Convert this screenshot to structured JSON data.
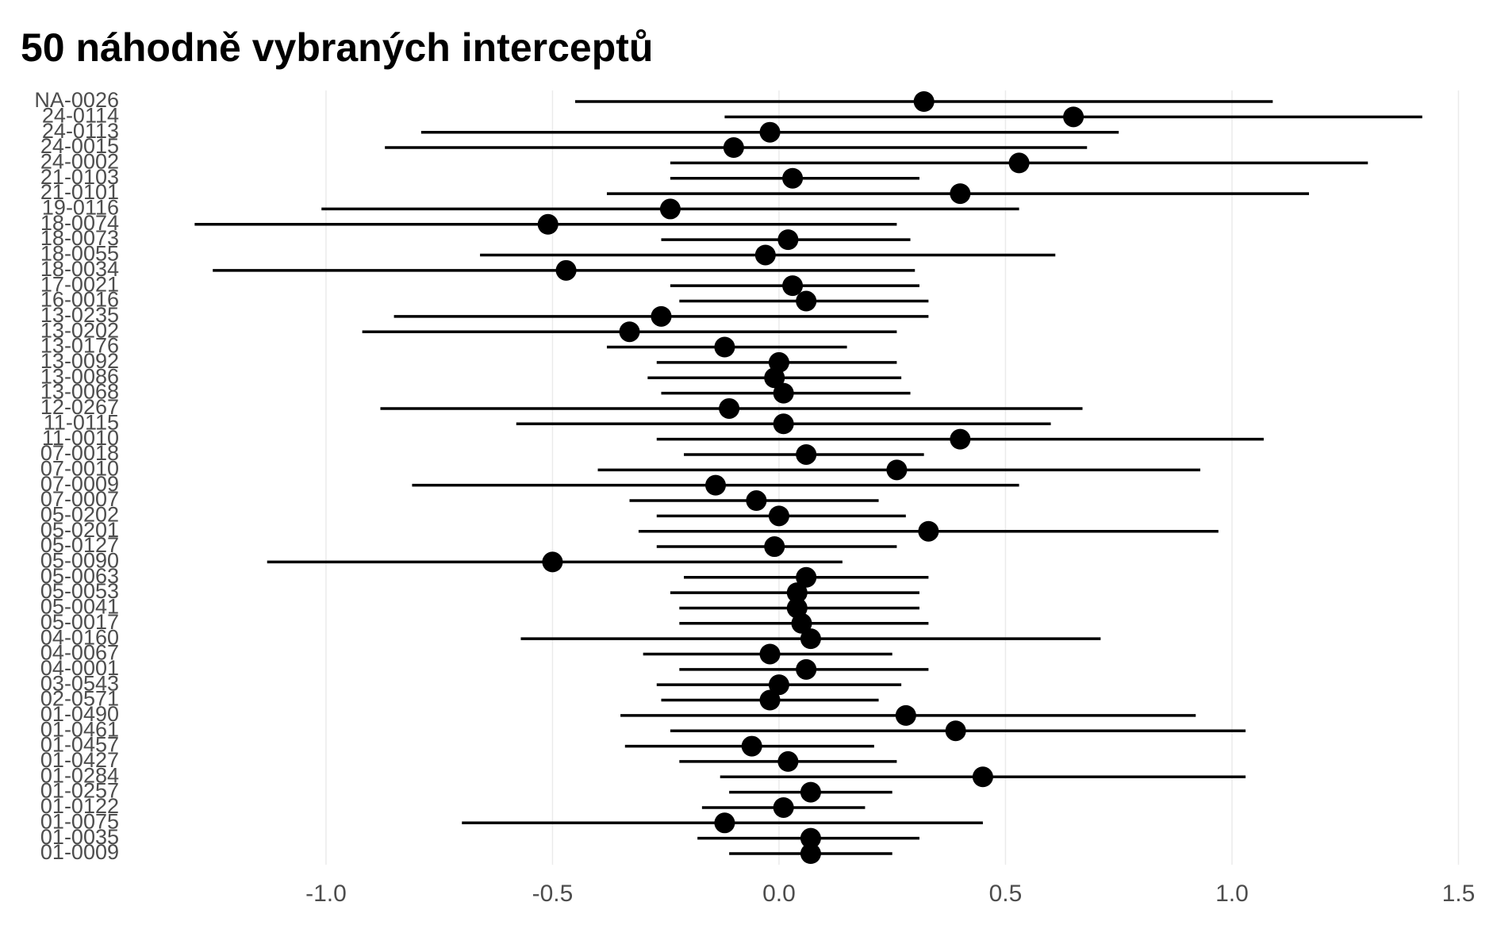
{
  "chart_data": {
    "type": "pointrange",
    "title": "50 náhodně vybraných interceptů",
    "categories": [
      "NA-0026",
      "24-0114",
      "24-0113",
      "24-0015",
      "24-0002",
      "21-0103",
      "21-0101",
      "19-0116",
      "18-0074",
      "18-0073",
      "18-0055",
      "18-0034",
      "17-0021",
      "16-0016",
      "13-0235",
      "13-0202",
      "13-0176",
      "13-0092",
      "13-0086",
      "13-0068",
      "12-0267",
      "11-0115",
      "11-0010",
      "07-0018",
      "07-0010",
      "07-0009",
      "07-0007",
      "05-0202",
      "05-0201",
      "05-0127",
      "05-0090",
      "05-0063",
      "05-0053",
      "05-0041",
      "05-0017",
      "04-0160",
      "04-0067",
      "04-0001",
      "03-0543",
      "02-0571",
      "01-0490",
      "01-0461",
      "01-0457",
      "01-0427",
      "01-0284",
      "01-0257",
      "01-0122",
      "01-0075",
      "01-0035",
      "01-0009"
    ],
    "color": "#000000",
    "values": [
      0.32,
      0.65,
      -0.02,
      -0.1,
      0.53,
      0.03,
      0.4,
      -0.24,
      -0.51,
      0.02,
      -0.03,
      -0.47,
      0.03,
      0.06,
      -0.26,
      -0.33,
      -0.12,
      0.0,
      -0.01,
      0.01,
      -0.11,
      0.01,
      0.4,
      0.06,
      0.26,
      -0.14,
      -0.05,
      0.0,
      0.33,
      -0.01,
      -0.5,
      0.06,
      0.04,
      0.04,
      0.05,
      0.07,
      -0.02,
      0.06,
      0.0,
      -0.02,
      0.28,
      0.39,
      -0.06,
      0.02,
      0.45,
      0.07,
      0.01,
      -0.12,
      0.07,
      0.07
    ],
    "lower": [
      -0.45,
      -0.12,
      -0.79,
      -0.87,
      -0.24,
      -0.24,
      -0.38,
      -1.01,
      -1.29,
      -0.26,
      -0.66,
      -1.25,
      -0.24,
      -0.22,
      -0.85,
      -0.92,
      -0.38,
      -0.27,
      -0.29,
      -0.26,
      -0.88,
      -0.58,
      -0.27,
      -0.21,
      -0.4,
      -0.81,
      -0.33,
      -0.27,
      -0.31,
      -0.27,
      -1.13,
      -0.21,
      -0.24,
      -0.22,
      -0.22,
      -0.57,
      -0.3,
      -0.22,
      -0.27,
      -0.26,
      -0.35,
      -0.24,
      -0.34,
      -0.22,
      -0.13,
      -0.11,
      -0.17,
      -0.7,
      -0.18,
      -0.11
    ],
    "upper": [
      1.09,
      1.42,
      0.75,
      0.68,
      1.3,
      0.31,
      1.17,
      0.53,
      0.26,
      0.29,
      0.61,
      0.3,
      0.31,
      0.33,
      0.33,
      0.26,
      0.15,
      0.26,
      0.27,
      0.29,
      0.67,
      0.6,
      1.07,
      0.32,
      0.93,
      0.53,
      0.22,
      0.28,
      0.97,
      0.26,
      0.14,
      0.33,
      0.31,
      0.31,
      0.33,
      0.71,
      0.25,
      0.33,
      0.27,
      0.22,
      0.92,
      1.03,
      0.21,
      0.26,
      1.03,
      0.25,
      0.19,
      0.45,
      0.31,
      0.25
    ],
    "xlim": [
      -1.45,
      1.55
    ],
    "xticks": [
      {
        "value": -1,
        "label": "-1.0"
      },
      {
        "value": -0.5,
        "label": "-0.5"
      },
      {
        "value": 0,
        "label": "0.0"
      },
      {
        "value": 0.5,
        "label": "0.5"
      },
      {
        "value": 1,
        "label": "1.0"
      },
      {
        "value": 1.5,
        "label": "1.5"
      }
    ],
    "grid": true
  }
}
